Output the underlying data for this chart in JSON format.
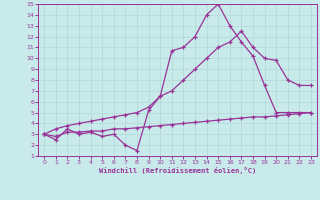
{
  "bg_color": "#c8eaea",
  "grid_color": "#b0d8d8",
  "line_color": "#993399",
  "xlabel": "Windchill (Refroidissement éolien,°C)",
  "xlim": [
    -0.5,
    23.5
  ],
  "ylim": [
    1,
    15
  ],
  "xticks": [
    0,
    1,
    2,
    3,
    4,
    5,
    6,
    7,
    8,
    9,
    10,
    11,
    12,
    13,
    14,
    15,
    16,
    17,
    18,
    19,
    20,
    21,
    22,
    23
  ],
  "yticks": [
    1,
    2,
    3,
    4,
    5,
    6,
    7,
    8,
    9,
    10,
    11,
    12,
    13,
    14,
    15
  ],
  "line1_x": [
    0,
    1,
    2,
    3,
    4,
    5,
    6,
    7,
    8,
    9,
    10,
    11,
    12,
    13,
    14,
    15,
    16,
    17,
    18,
    19,
    20,
    21,
    22,
    23
  ],
  "line1_y": [
    3.0,
    2.8,
    3.2,
    3.2,
    3.3,
    3.3,
    3.5,
    3.5,
    3.6,
    3.7,
    3.8,
    3.9,
    4.0,
    4.1,
    4.2,
    4.3,
    4.4,
    4.5,
    4.6,
    4.6,
    4.7,
    4.8,
    4.9,
    5.0
  ],
  "line2_x": [
    0,
    1,
    2,
    3,
    4,
    5,
    6,
    7,
    8,
    9,
    10,
    11,
    12,
    13,
    14,
    15,
    16,
    17,
    18,
    19,
    20,
    21,
    22,
    23
  ],
  "line2_y": [
    3.0,
    2.5,
    3.5,
    3.0,
    3.2,
    2.8,
    3.0,
    2.0,
    1.5,
    5.2,
    6.5,
    10.7,
    11.0,
    12.0,
    14.0,
    15.0,
    13.0,
    11.5,
    10.2,
    7.5,
    5.0,
    5.0,
    5.0,
    5.0
  ],
  "line3_x": [
    0,
    1,
    2,
    3,
    4,
    5,
    6,
    7,
    8,
    9,
    10,
    11,
    12,
    13,
    14,
    15,
    16,
    17,
    18,
    19,
    20,
    21,
    22,
    23
  ],
  "line3_y": [
    3.0,
    3.5,
    3.8,
    4.0,
    4.2,
    4.4,
    4.6,
    4.8,
    5.0,
    5.5,
    6.5,
    7.0,
    8.0,
    9.0,
    10.0,
    11.0,
    11.5,
    12.5,
    11.0,
    10.0,
    9.8,
    8.0,
    7.5,
    7.5
  ]
}
